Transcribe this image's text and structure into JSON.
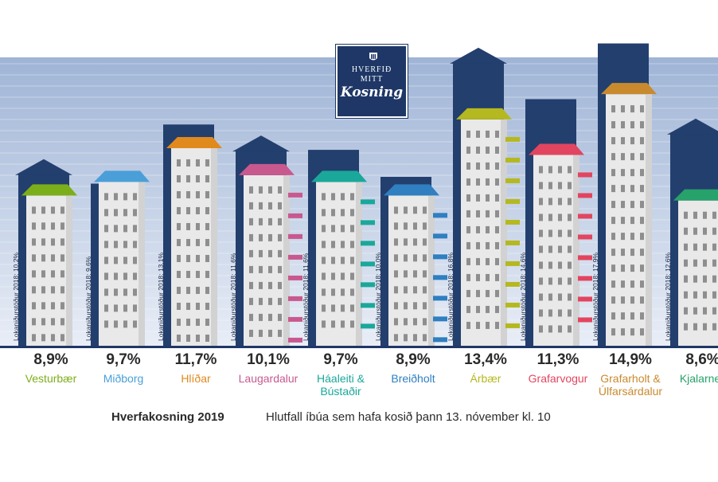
{
  "chart_data": {
    "type": "bar",
    "title": "Hverfakosning 2019",
    "subtitle": "Hlutfall íbúa sem hafa kosið þann 13. nóvember kl. 10",
    "prev_label_prefix": "Lokaniðurstöður 2018:",
    "categories": [
      {
        "name_lines": [
          "Vesturbær"
        ],
        "value": 8.9,
        "value_label": "8,9%",
        "prev": 10.2,
        "prev_label": "10,2%",
        "color": "#7cae1a"
      },
      {
        "name_lines": [
          "Miðborg"
        ],
        "value": 9.7,
        "value_label": "9,7%",
        "prev": 9.6,
        "prev_label": "9,6%",
        "color": "#4a9fd8"
      },
      {
        "name_lines": [
          "Hlíðar"
        ],
        "value": 11.7,
        "value_label": "11,7%",
        "prev": 13.1,
        "prev_label": "13,1%",
        "color": "#e0891d"
      },
      {
        "name_lines": [
          "Laugardalur"
        ],
        "value": 10.1,
        "value_label": "10,1%",
        "prev": 11.6,
        "prev_label": "11,6%",
        "color": "#c8598f"
      },
      {
        "name_lines": [
          "Háaleiti &",
          "Bústaðir"
        ],
        "value": 9.7,
        "value_label": "9,7%",
        "prev": 11.6,
        "prev_label": "11,6%",
        "color": "#1aa89a"
      },
      {
        "name_lines": [
          "Breiðholt"
        ],
        "value": 8.9,
        "value_label": "8,9%",
        "prev": 10.0,
        "prev_label": "10,0%",
        "color": "#2f7fc1"
      },
      {
        "name_lines": [
          "Árbær"
        ],
        "value": 13.4,
        "value_label": "13,4%",
        "prev": 16.8,
        "prev_label": "16,8%",
        "color": "#b5b81e"
      },
      {
        "name_lines": [
          "Grafarvogur"
        ],
        "value": 11.3,
        "value_label": "11,3%",
        "prev": 14.6,
        "prev_label": "14,6%",
        "color": "#e2455f"
      },
      {
        "name_lines": [
          "Grafarholt &",
          "Úlfarsárdalur"
        ],
        "value": 14.9,
        "value_label": "14,9%",
        "prev": 17.9,
        "prev_label": "17,9%",
        "color": "#c98a2e"
      },
      {
        "name_lines": [
          "Kjalarnes"
        ],
        "value": 8.6,
        "value_label": "8,6%",
        "prev": 12.6,
        "prev_label": "12,6%",
        "color": "#27a26a"
      }
    ],
    "ylim": [
      0,
      20
    ]
  },
  "logo": {
    "line1": "HVERFIÐ",
    "line2": "MITT",
    "line3": "Kosning"
  },
  "colors": {
    "sky_top": "#9fb4d6",
    "sky_bottom": "#e9eef7",
    "prev_building": "#233f6e",
    "building": "#e9e9e9",
    "window": "#8e8e8e",
    "ground": "#1e3766"
  }
}
